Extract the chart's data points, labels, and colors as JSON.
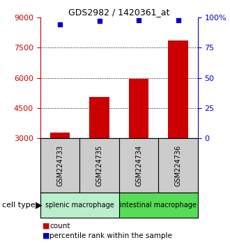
{
  "title": "GDS2982 / 1420361_at",
  "samples": [
    "GSM224733",
    "GSM224735",
    "GSM224734",
    "GSM224736"
  ],
  "counts": [
    3300,
    5050,
    5950,
    7850
  ],
  "percentile_ranks": [
    94,
    97,
    97.5,
    97.5
  ],
  "ylim_left": [
    3000,
    9000
  ],
  "yticks_left": [
    3000,
    4500,
    6000,
    7500,
    9000
  ],
  "ylim_right": [
    0,
    100
  ],
  "yticks_right": [
    0,
    25,
    50,
    75,
    100
  ],
  "bar_color": "#cc0000",
  "dot_color": "#0000cc",
  "group1_label": "splenic macrophage",
  "group2_label": "intestinal macrophage",
  "group1_color": "#bbeecc",
  "group2_color": "#55dd55",
  "sample_bg_color": "#cccccc",
  "cell_type_label": "cell type",
  "legend_count": "count",
  "legend_pct": "percentile rank within the sample",
  "bar_width": 0.5
}
